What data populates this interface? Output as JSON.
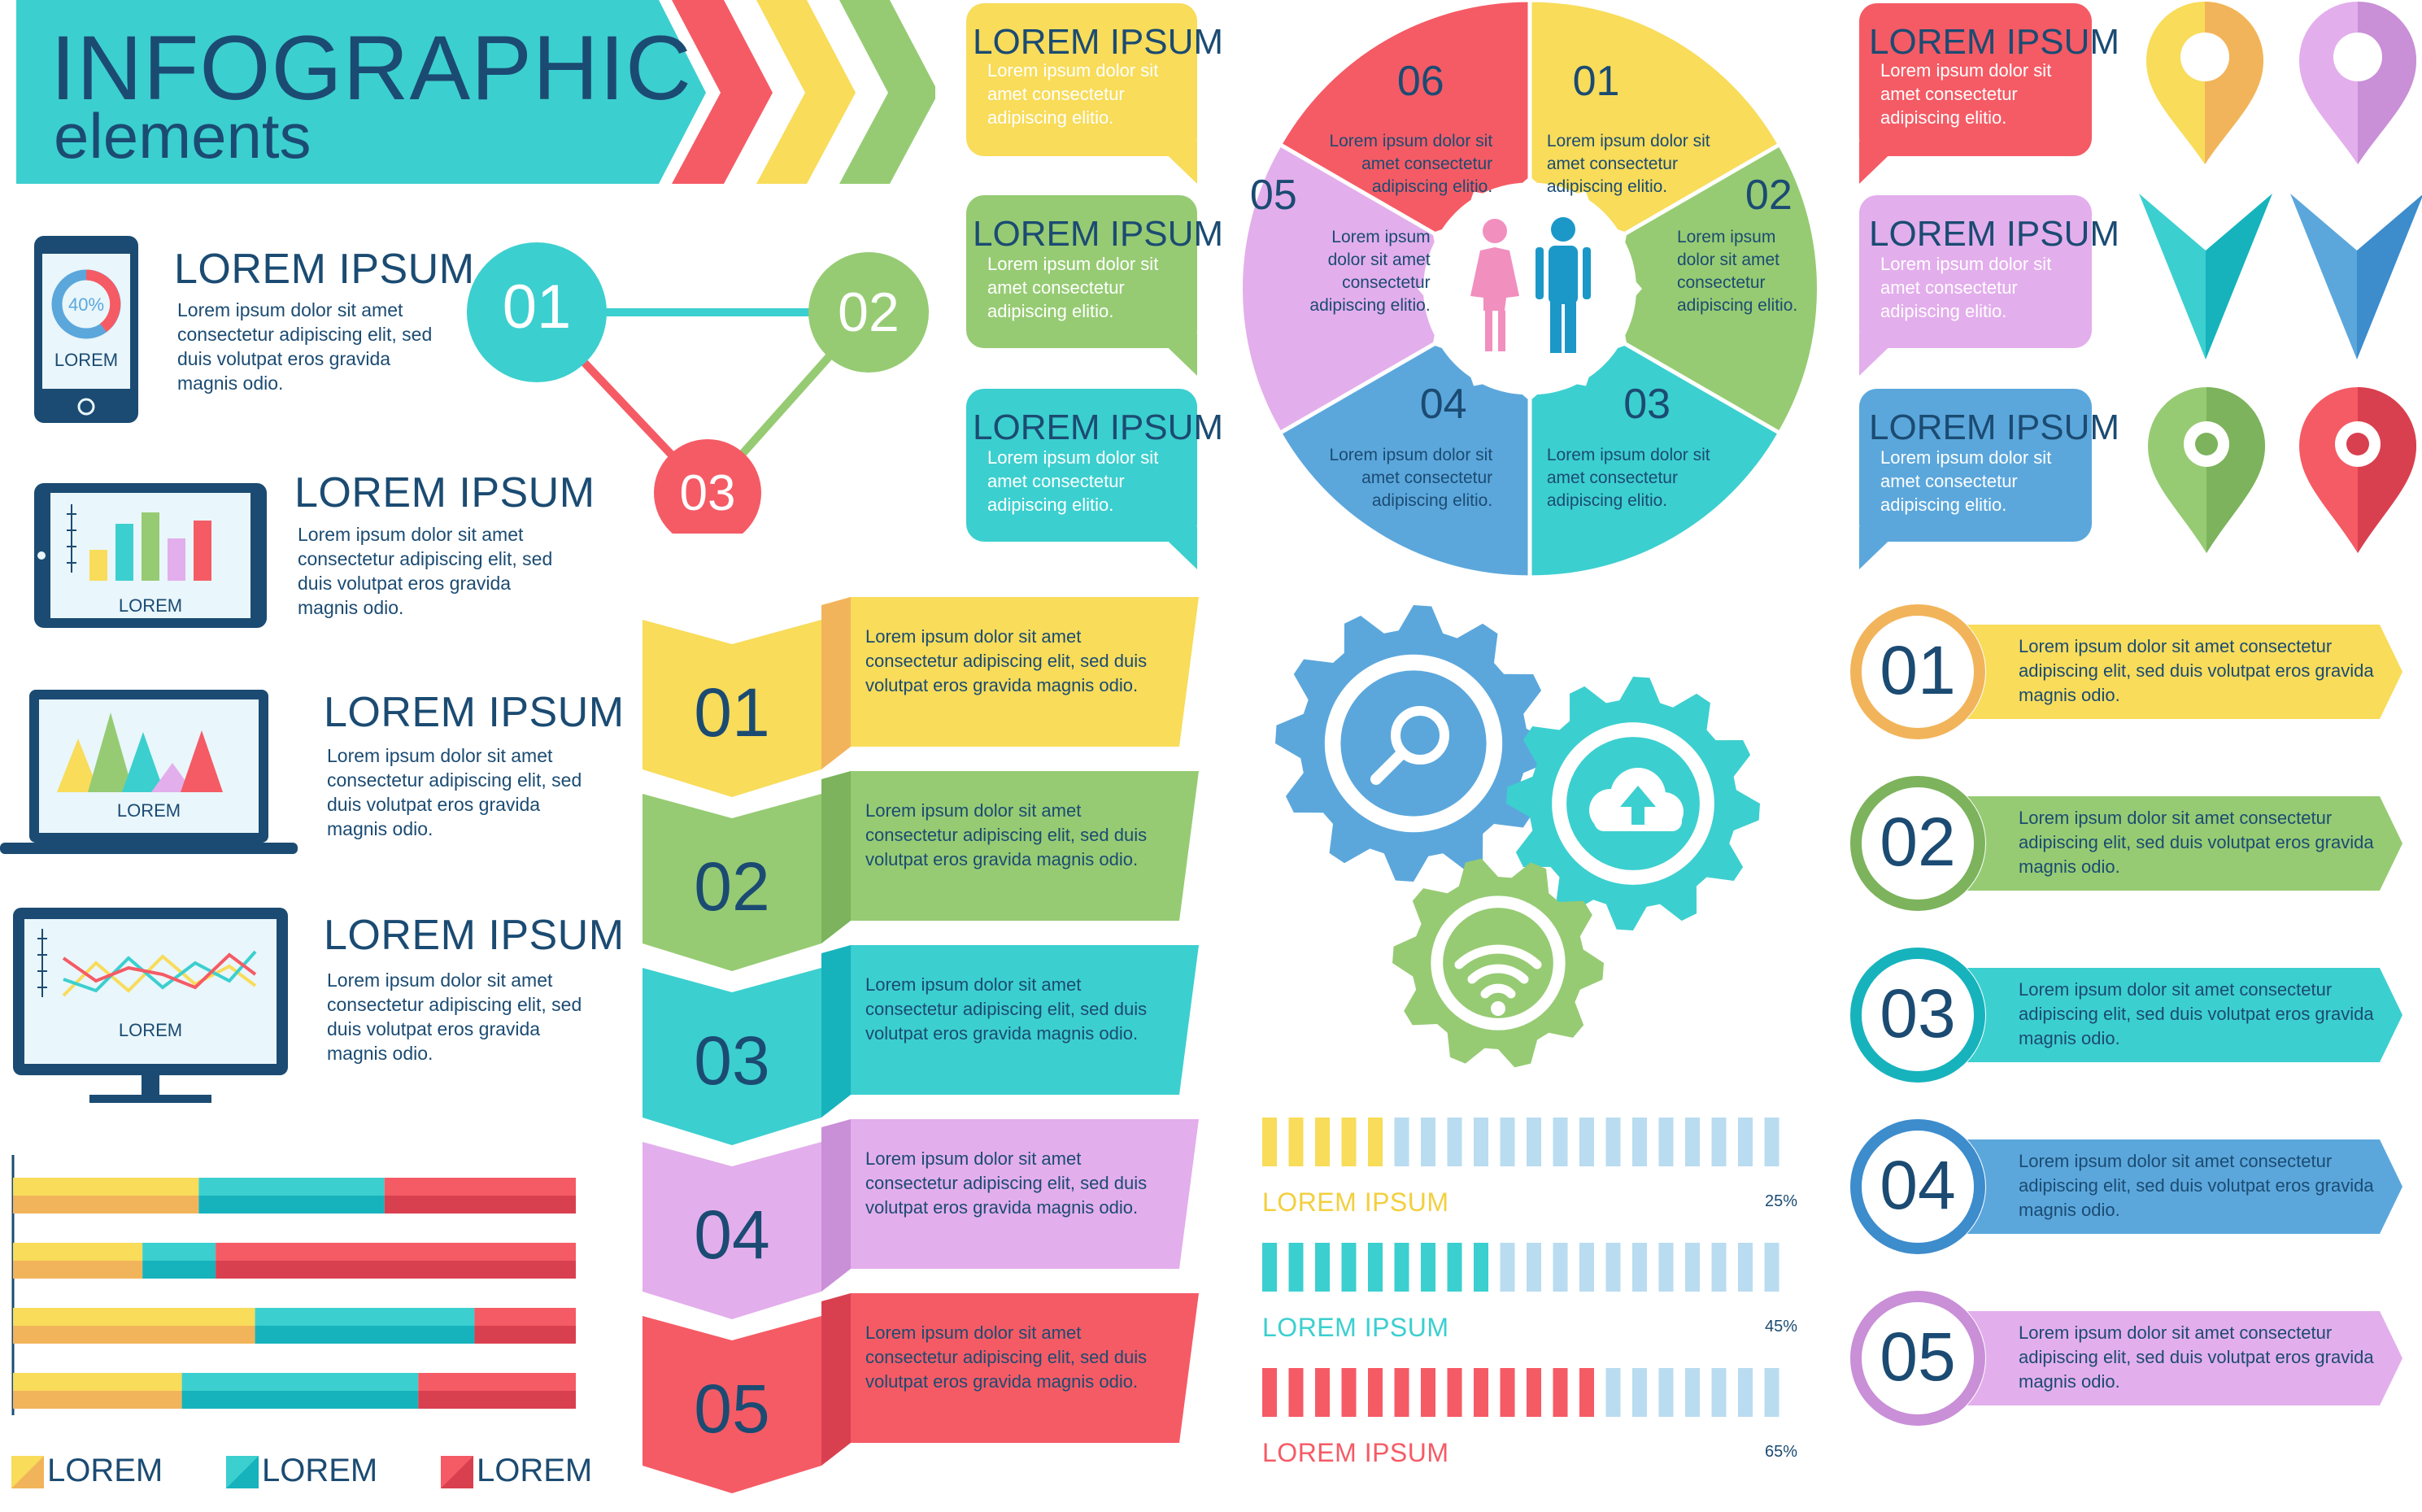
{
  "title": {
    "line1": "INFOGRAPHIC",
    "line2": "elements"
  },
  "devices": [
    {
      "heading": "LOREM IPSUM",
      "text": "Lorem ipsum dolor sit amet consectetur adipiscing elit, sed duis volutpat eros gravida magnis odio.",
      "screen_label": "LOREM",
      "donut_pct": "40%"
    },
    {
      "heading": "LOREM IPSUM",
      "text": "Lorem ipsum dolor sit amet consectetur adipiscing elit, sed duis volutpat eros gravida magnis odio.",
      "screen_label": "LOREM"
    },
    {
      "heading": "LOREM IPSUM",
      "text": "Lorem ipsum dolor sit amet consectetur adipiscing elit, sed duis volutpat eros gravida magnis odio.",
      "screen_label": "LOREM"
    },
    {
      "heading": "LOREM IPSUM",
      "text": "Lorem ipsum dolor sit amet consectetur adipiscing elit, sed duis volutpat eros gravida magnis odio.",
      "screen_label": "LOREM"
    }
  ],
  "triangle_nodes": [
    "01",
    "02",
    "03"
  ],
  "bubbles_mid": [
    {
      "title": "LOREM IPSUM",
      "text": "Lorem ipsum dolor sit amet consectetur adipiscing elitio.",
      "color": "#f8dc5a"
    },
    {
      "title": "LOREM IPSUM",
      "text": "Lorem ipsum dolor sit amet consectetur adipiscing elitio.",
      "color": "#96cb73"
    },
    {
      "title": "LOREM IPSUM",
      "text": "Lorem ipsum dolor sit amet consectetur adipiscing elitio.",
      "color": "#3ccfcf"
    }
  ],
  "bubbles_right": [
    {
      "title": "LOREM IPSUM",
      "text": "Lorem ipsum dolor sit amet consectetur adipiscing elitio.",
      "color": "#f55b65"
    },
    {
      "title": "LOREM IPSUM",
      "text": "Lorem ipsum dolor sit amet consectetur adipiscing elitio.",
      "color": "#e3aeec"
    },
    {
      "title": "LOREM IPSUM",
      "text": "Lorem ipsum dolor sit amet consectetur adipiscing elitio.",
      "color": "#5ba7dc"
    }
  ],
  "wheel": [
    {
      "num": "01",
      "text": "Lorem ipsum dolor sit amet consectetur adipiscing elitio.",
      "color": "#f8dc5a"
    },
    {
      "num": "02",
      "text": "Lorem ipsum dolor sit amet consectetur adipiscing elitio.",
      "color": "#96cb73"
    },
    {
      "num": "03",
      "text": "Lorem ipsum dolor sit amet consectetur adipiscing elitio.",
      "color": "#3ccfcf"
    },
    {
      "num": "04",
      "text": "Lorem ipsum dolor sit amet consectetur adipiscing elitio.",
      "color": "#5ba7dc"
    },
    {
      "num": "05",
      "text": "Lorem ipsum dolor sit amet consectetur adipiscing elitio.",
      "color": "#e3aeec"
    },
    {
      "num": "06",
      "text": "Lorem ipsum dolor sit amet consectetur adipiscing elitio.",
      "color": "#f55b65"
    }
  ],
  "ribbons": [
    {
      "num": "01",
      "text": "Lorem ipsum dolor sit amet consectetur adipiscing elit, sed duis volutpat eros gravida magnis odio.",
      "color": "#f8dc5a",
      "dark": "#f2b45a"
    },
    {
      "num": "02",
      "text": "Lorem ipsum dolor sit amet consectetur adipiscing elit, sed duis volutpat eros gravida magnis odio.",
      "color": "#96cb73",
      "dark": "#7cb35c"
    },
    {
      "num": "03",
      "text": "Lorem ipsum dolor sit amet consectetur adipiscing elit, sed duis volutpat eros gravida magnis odio.",
      "color": "#3ccfcf",
      "dark": "#16b3bd"
    },
    {
      "num": "04",
      "text": "Lorem ipsum dolor sit amet consectetur adipiscing elit, sed duis volutpat eros gravida magnis odio.",
      "color": "#e3aeec",
      "dark": "#c98fd7"
    },
    {
      "num": "05",
      "text": "Lorem ipsum dolor sit amet consectetur adipiscing elit, sed duis volutpat eros gravida magnis odio.",
      "color": "#f55b65",
      "dark": "#d9404f"
    }
  ],
  "gears": [
    {
      "icon": "search-icon",
      "color": "#5ba7dc"
    },
    {
      "icon": "cloud-upload-icon",
      "color": "#3ccfcf"
    },
    {
      "icon": "wifi-icon",
      "color": "#96cb73"
    }
  ],
  "progress": [
    {
      "label": "LOREM IPSUM",
      "pct": "25%",
      "value": 0.25,
      "color": "#f8dc5a",
      "label_color": "#f2cf3e"
    },
    {
      "label": "LOREM IPSUM",
      "pct": "45%",
      "value": 0.45,
      "color": "#3ccfcf",
      "label_color": "#3ccfcf"
    },
    {
      "label": "LOREM IPSUM",
      "pct": "65%",
      "value": 0.65,
      "color": "#f55b65",
      "label_color": "#f55b65"
    }
  ],
  "numbered_arrows": [
    {
      "num": "01",
      "text": "Lorem ipsum dolor sit amet consectetur adipiscing elit, sed duis volutpat eros gravida magnis odio.",
      "color": "#f8dc5a",
      "ring": "#f2b45a"
    },
    {
      "num": "02",
      "text": "Lorem ipsum dolor sit amet consectetur adipiscing elit, sed duis volutpat eros gravida magnis odio.",
      "color": "#96cb73",
      "ring": "#7cb35c"
    },
    {
      "num": "03",
      "text": "Lorem ipsum dolor sit amet consectetur adipiscing elit, sed duis volutpat eros gravida magnis odio.",
      "color": "#3ccfcf",
      "ring": "#16b3bd"
    },
    {
      "num": "04",
      "text": "Lorem ipsum dolor sit amet consectetur adipiscing elit, sed duis volutpat eros gravida magnis odio.",
      "color": "#5ba7dc",
      "ring": "#3d8ccc"
    },
    {
      "num": "05",
      "text": "Lorem ipsum dolor sit amet consectetur adipiscing elit, sed duis volutpat eros gravida magnis odio.",
      "color": "#e3aeec",
      "ring": "#c98fd7"
    }
  ],
  "stacked_bars": {
    "rows": [
      [
        0.33,
        0.33,
        0.34
      ],
      [
        0.23,
        0.13,
        0.64
      ],
      [
        0.43,
        0.39,
        0.18
      ],
      [
        0.3,
        0.42,
        0.28
      ]
    ],
    "legend": [
      {
        "label": "LOREM",
        "color": "#f8dc5a",
        "dark": "#f2b45a"
      },
      {
        "label": "LOREM",
        "color": "#3ccfcf",
        "dark": "#16b3bd"
      },
      {
        "label": "LOREM",
        "color": "#f55b65",
        "dark": "#d9404f"
      }
    ]
  },
  "pins": [
    {
      "name": "yellow-map-pin-icon",
      "color": "#f8dc5a",
      "dark": "#f2b45a"
    },
    {
      "name": "purple-map-pin-icon",
      "color": "#e3aeec",
      "dark": "#c98fd7"
    },
    {
      "name": "teal-arrow-marker-icon",
      "color": "#3ccfcf",
      "dark": "#16b3bd"
    },
    {
      "name": "blue-arrow-marker-icon",
      "color": "#5ba7dc",
      "dark": "#3d8ccc"
    },
    {
      "name": "green-map-pin-icon",
      "color": "#96cb73",
      "dark": "#7cb35c"
    },
    {
      "name": "red-map-pin-icon",
      "color": "#f55b65",
      "dark": "#d9404f"
    }
  ]
}
